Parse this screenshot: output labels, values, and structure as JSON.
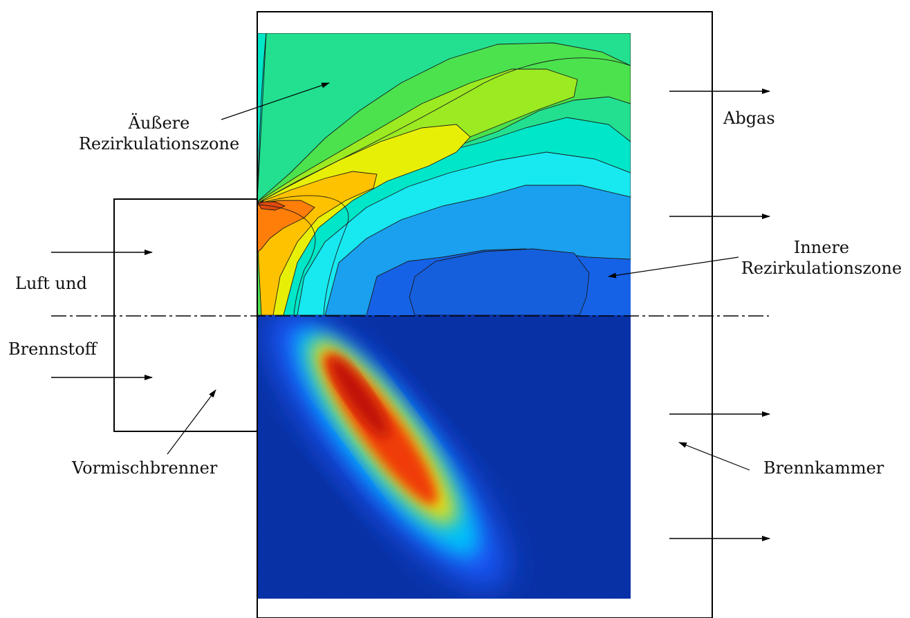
{
  "labels": {
    "outer_recirculation": [
      "Äußere",
      "Rezirkulationszone"
    ],
    "inner_recirculation": [
      "Innere",
      "Rezirkulationszone"
    ],
    "exhaust": "Abgas",
    "air_and": "Luft und",
    "fuel": "Brennstoff",
    "premix_burner": "Vormischbrenner",
    "combustion_chamber": "Brennkammer"
  },
  "colors": {
    "line": "#000000",
    "background_blue": "#0a2fa8",
    "contour_palette": [
      "#00e6c8",
      "#22e090",
      "#4be24e",
      "#9cea22",
      "#e8ef06",
      "#ffc200",
      "#ff7e0a",
      "#18e8f0",
      "#1aa0ee",
      "#1662e6"
    ],
    "heat_palette": [
      "#1a58ff",
      "#00c8ff",
      "#ffe800",
      "#ff3a00",
      "#cc1000"
    ]
  }
}
